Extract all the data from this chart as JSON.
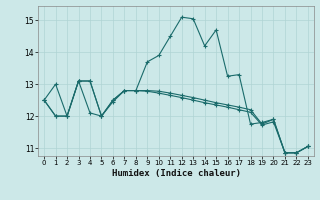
{
  "xlabel": "Humidex (Indice chaleur)",
  "background_color": "#cce8e8",
  "line_color": "#1a6b6b",
  "grid_color": "#b0d4d4",
  "xlim": [
    -0.5,
    23.5
  ],
  "ylim": [
    10.75,
    15.45
  ],
  "yticks": [
    11,
    12,
    13,
    14,
    15
  ],
  "xticks": [
    0,
    1,
    2,
    3,
    4,
    5,
    6,
    7,
    8,
    9,
    10,
    11,
    12,
    13,
    14,
    15,
    16,
    17,
    18,
    19,
    20,
    21,
    22,
    23
  ],
  "series1_y": [
    12.5,
    13.0,
    12.0,
    13.1,
    12.1,
    12.0,
    12.45,
    12.8,
    12.8,
    13.7,
    13.9,
    14.5,
    15.1,
    15.05,
    14.2,
    14.7,
    13.25,
    13.3,
    11.75,
    11.8,
    11.9,
    10.85,
    10.85,
    11.05
  ],
  "series2_y": [
    12.5,
    12.0,
    12.0,
    13.1,
    13.1,
    12.0,
    12.5,
    12.8,
    12.8,
    12.8,
    12.78,
    12.72,
    12.65,
    12.58,
    12.5,
    12.42,
    12.35,
    12.28,
    12.2,
    11.75,
    11.9,
    10.85,
    10.85,
    11.05
  ],
  "series3_y": [
    12.5,
    12.0,
    12.0,
    13.1,
    13.1,
    12.0,
    12.5,
    12.8,
    12.8,
    12.78,
    12.72,
    12.65,
    12.58,
    12.5,
    12.42,
    12.35,
    12.28,
    12.2,
    12.12,
    11.72,
    11.82,
    10.85,
    10.85,
    11.05
  ]
}
